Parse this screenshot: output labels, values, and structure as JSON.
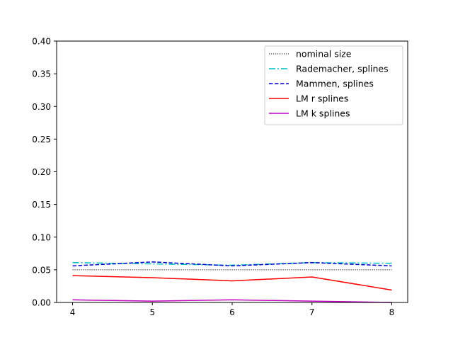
{
  "chart_data": {
    "type": "line",
    "title": "",
    "xlabel": "",
    "ylabel": "",
    "xlim": [
      3.8,
      8.2
    ],
    "ylim": [
      0,
      0.4
    ],
    "xticks": [
      4,
      5,
      6,
      7,
      8
    ],
    "xtick_labels": [
      "4",
      "5",
      "6",
      "7",
      "8"
    ],
    "yticks": [
      0,
      0.05,
      0.1,
      0.15,
      0.2,
      0.25,
      0.3,
      0.35,
      0.4
    ],
    "ytick_labels": [
      "0.00",
      "0.05",
      "0.10",
      "0.15",
      "0.20",
      "0.25",
      "0.30",
      "0.35",
      "0.40"
    ],
    "grid": false,
    "legend_position": "top-right",
    "x": [
      4,
      5,
      6,
      7,
      8
    ],
    "series": [
      {
        "name": "nominal size",
        "values": [
          0.05,
          0.05,
          0.05,
          0.05,
          0.05
        ],
        "color": "#000000",
        "dash": "1.2,1.8",
        "width": 1
      },
      {
        "name": "Rademacher, splines",
        "values": [
          0.061,
          0.059,
          0.057,
          0.061,
          0.06
        ],
        "color": "#00bfbf",
        "dash": "9,3,2,3",
        "width": 1.5
      },
      {
        "name": "Mammen, splines",
        "values": [
          0.056,
          0.062,
          0.056,
          0.061,
          0.056
        ],
        "color": "#0000cc",
        "dash": "5.5,2.5",
        "width": 1.5
      },
      {
        "name": "LM r splines",
        "values": [
          0.041,
          0.038,
          0.033,
          0.039,
          0.019
        ],
        "color": "#ff0000",
        "dash": "",
        "width": 1.5
      },
      {
        "name": "LM k splines",
        "values": [
          0.004,
          0.002,
          0.004,
          0.002,
          0.0
        ],
        "color": "#bf00bf",
        "dash": "",
        "width": 1.5
      }
    ]
  }
}
